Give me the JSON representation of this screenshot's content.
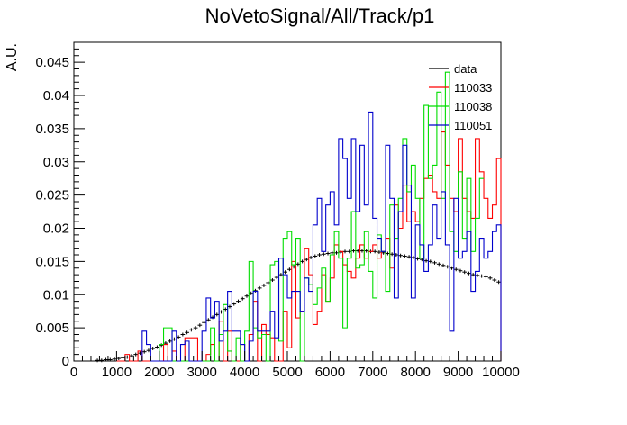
{
  "chart_data": {
    "type": "histogram",
    "title": "NoVetoSignal/All/Track/p1",
    "xlabel": "",
    "ylabel": "A.U.",
    "xlim": [
      0,
      10000
    ],
    "ylim": [
      0,
      0.048
    ],
    "grid": false,
    "legend_position": "top-right",
    "x_ticks": [
      "0",
      "1000",
      "2000",
      "3000",
      "4000",
      "5000",
      "6000",
      "7000",
      "8000",
      "9000",
      "10000"
    ],
    "y_ticks": [
      "0",
      "0.005",
      "0.01",
      "0.015",
      "0.02",
      "0.025",
      "0.03",
      "0.035",
      "0.04",
      "0.045"
    ],
    "bin_width": 100,
    "series": [
      {
        "name": "data",
        "color": "#000000",
        "style": "points",
        "bin_starts": [
          500,
          600,
          700,
          800,
          900,
          1000,
          1100,
          1200,
          1300,
          1400,
          1500,
          1600,
          1700,
          1800,
          1900,
          2000,
          2100,
          2200,
          2300,
          2400,
          2500,
          2600,
          2700,
          2800,
          2900,
          3000,
          3100,
          3200,
          3300,
          3400,
          3500,
          3600,
          3700,
          3800,
          3900,
          4000,
          4100,
          4200,
          4300,
          4400,
          4500,
          4600,
          4700,
          4800,
          4900,
          5000,
          5100,
          5200,
          5300,
          5400,
          5500,
          5600,
          5700,
          5800,
          5900,
          6000,
          6100,
          6200,
          6300,
          6400,
          6500,
          6600,
          6700,
          6800,
          6900,
          7000,
          7100,
          7200,
          7300,
          7400,
          7500,
          7600,
          7700,
          7800,
          7900,
          8000,
          8100,
          8200,
          8300,
          8400,
          8500,
          8600,
          8700,
          8800,
          8900,
          9000,
          9100,
          9200,
          9300,
          9400,
          9500,
          9600,
          9700,
          9800,
          9900
        ],
        "values": [
          0.0001,
          0.0001,
          0.0002,
          0.0002,
          0.0003,
          0.0004,
          0.0005,
          0.0006,
          0.0008,
          0.001,
          0.0012,
          0.0014,
          0.0016,
          0.0019,
          0.0021,
          0.0024,
          0.0027,
          0.003,
          0.0033,
          0.0036,
          0.004,
          0.0043,
          0.0047,
          0.005,
          0.0054,
          0.0058,
          0.0062,
          0.0066,
          0.007,
          0.0074,
          0.0078,
          0.0082,
          0.0086,
          0.009,
          0.0094,
          0.0098,
          0.0102,
          0.0106,
          0.011,
          0.0114,
          0.0118,
          0.0122,
          0.0126,
          0.013,
          0.0134,
          0.0138,
          0.0142,
          0.0146,
          0.015,
          0.0153,
          0.0156,
          0.0158,
          0.016,
          0.0161,
          0.0162,
          0.0163,
          0.0163,
          0.0164,
          0.0165,
          0.0165,
          0.0166,
          0.0166,
          0.0166,
          0.0166,
          0.0165,
          0.0165,
          0.0164,
          0.0163,
          0.0162,
          0.0161,
          0.016,
          0.0159,
          0.0158,
          0.0157,
          0.0156,
          0.0154,
          0.0153,
          0.0151,
          0.015,
          0.0148,
          0.0146,
          0.0144,
          0.0142,
          0.014,
          0.0138,
          0.0136,
          0.0134,
          0.0132,
          0.013,
          0.0129,
          0.0128,
          0.0127,
          0.0125,
          0.0122,
          0.0119
        ]
      },
      {
        "name": "110033",
        "color": "#ff0000",
        "style": "step",
        "bin_starts": [
          1000,
          1100,
          1200,
          1300,
          1400,
          1500,
          1600,
          1700,
          1800,
          1900,
          2000,
          2100,
          2200,
          2300,
          2400,
          2500,
          2600,
          2700,
          2800,
          2900,
          3000,
          3100,
          3200,
          3300,
          3400,
          3500,
          3600,
          3700,
          3800,
          3900,
          4000,
          4100,
          4200,
          4300,
          4400,
          4500,
          4600,
          4700,
          4800,
          4900,
          5000,
          5100,
          5200,
          5300,
          5400,
          5500,
          5600,
          5700,
          5800,
          5900,
          6000,
          6100,
          6200,
          6300,
          6400,
          6500,
          6600,
          6700,
          6800,
          6900,
          7000,
          7100,
          7200,
          7300,
          7400,
          7500,
          7600,
          7700,
          7800,
          7900,
          8000,
          8100,
          8200,
          8300,
          8400,
          8500,
          8600,
          8700,
          8800,
          8900,
          9000,
          9100,
          9200,
          9300,
          9400,
          9500,
          9600,
          9700,
          9800,
          9900
        ],
        "values": [
          0,
          0,
          0.001,
          0,
          0,
          0.0015,
          0,
          0,
          0,
          0,
          0,
          0.0025,
          0,
          0.0015,
          0,
          0,
          0.0035,
          0.0035,
          0.0035,
          0,
          0,
          0.001,
          0.0025,
          0,
          0.006,
          0,
          0.0045,
          0,
          0,
          0.0025,
          0,
          0.004,
          0.009,
          0,
          0.0055,
          0.004,
          0.0035,
          0,
          0,
          0.0075,
          0.002,
          0.015,
          0.0065,
          0.0075,
          0.017,
          0.013,
          0.0055,
          0.0075,
          0.013,
          0.009,
          0.0125,
          0.0175,
          0.0165,
          0.0145,
          0.0135,
          0.0125,
          0.0155,
          0.0175,
          0.0155,
          0.0165,
          0.0175,
          0.0155,
          0.0165,
          0.0185,
          0.014,
          0.0235,
          0.02,
          0.0265,
          0.021,
          0.0225,
          0.021,
          0.0245,
          0.0275,
          0.028,
          0.0255,
          0.0245,
          0.0345,
          0.0295,
          0.0245,
          0.0225,
          0.0335,
          0.0245,
          0.0225,
          0.0215,
          0.0335,
          0.0285,
          0.0245,
          0.0215,
          0.0235,
          0.0305
        ]
      },
      {
        "name": "110038",
        "color": "#00dd00",
        "style": "step",
        "bin_starts": [
          2000,
          2100,
          2200,
          2300,
          2400,
          2500,
          2600,
          2700,
          2800,
          2900,
          3000,
          3100,
          3200,
          3300,
          3400,
          3500,
          3600,
          3700,
          3800,
          3900,
          4000,
          4100,
          4200,
          4300,
          4400,
          4500,
          4600,
          4700,
          4800,
          4900,
          5000,
          5100,
          5200,
          5300,
          5400,
          5500,
          5600,
          5700,
          5800,
          5900,
          6000,
          6100,
          6200,
          6300,
          6400,
          6500,
          6600,
          6700,
          6800,
          6900,
          7000,
          7100,
          7200,
          7300,
          7400,
          7500,
          7600,
          7700,
          7800,
          7900,
          8000,
          8100,
          8200,
          8300,
          8400,
          8500,
          8600,
          8700,
          8800,
          8900,
          9000,
          9100,
          9200,
          9300,
          9400,
          9500,
          9600,
          9700,
          9800,
          9900
        ],
        "values": [
          0.0025,
          0.005,
          0.005,
          0,
          0,
          0,
          0,
          0,
          0,
          0,
          0,
          0,
          0.005,
          0,
          0.004,
          0.0085,
          0.0015,
          0,
          0.0035,
          0,
          0.0045,
          0.015,
          0.005,
          0.0035,
          0.004,
          0,
          0.0145,
          0.015,
          0.003,
          0.0185,
          0.0195,
          0.0145,
          0.0185,
          0,
          0.0125,
          0.0115,
          0.0085,
          0.011,
          0.014,
          0.009,
          0.016,
          0.0195,
          0.0155,
          0.005,
          0.0155,
          0.0225,
          0.014,
          0.0145,
          0.0195,
          0.0135,
          0.0095,
          0.019,
          0.0165,
          0.0105,
          0.0235,
          0.0185,
          0.0245,
          0.0335,
          0.0255,
          0.0295,
          0.0245,
          0.0155,
          0.0385,
          0.0275,
          0.0295,
          0.0405,
          0.0245,
          0.0435,
          0.0195,
          0.0165,
          0.0285,
          0.0185,
          0.0275,
          0.0165,
          0.0215,
          0.0275
        ]
      },
      {
        "name": "110051",
        "color": "#0000cc",
        "style": "step",
        "bin_starts": [
          1600,
          1700,
          1800,
          1900,
          2000,
          2100,
          2200,
          2300,
          2400,
          2500,
          2600,
          2700,
          2800,
          2900,
          3000,
          3100,
          3200,
          3300,
          3400,
          3500,
          3600,
          3700,
          3800,
          3900,
          4000,
          4100,
          4200,
          4300,
          4400,
          4500,
          4600,
          4700,
          4800,
          4900,
          5000,
          5100,
          5200,
          5300,
          5400,
          5500,
          5600,
          5700,
          5800,
          5900,
          6000,
          6100,
          6200,
          6300,
          6400,
          6500,
          6600,
          6700,
          6800,
          6900,
          7000,
          7100,
          7200,
          7300,
          7400,
          7500,
          7600,
          7700,
          7800,
          7900,
          8000,
          8100,
          8200,
          8300,
          8400,
          8500,
          8600,
          8700,
          8800,
          8900,
          9000,
          9100,
          9200,
          9300,
          9400,
          9500,
          9600,
          9700,
          9800,
          9900
        ],
        "values": [
          0.0045,
          0.0025,
          0,
          0,
          0,
          0,
          0,
          0.0045,
          0,
          0.0025,
          0.003,
          0,
          0,
          0,
          0.0045,
          0.0095,
          0.0065,
          0.009,
          0.003,
          0.0045,
          0.0105,
          0.0045,
          0.0045,
          0.0025,
          0,
          0.003,
          0.0105,
          0.0045,
          0.0045,
          0.0045,
          0.0075,
          0.0035,
          0.0155,
          0.013,
          0.0095,
          0.0105,
          0.0105,
          0.0075,
          0.0125,
          0.0105,
          0.0205,
          0.0245,
          0.0165,
          0.0235,
          0.0255,
          0.0205,
          0.0335,
          0.0305,
          0.0245,
          0.0335,
          0.0225,
          0.0325,
          0.0235,
          0.0375,
          0.0215,
          0.0185,
          0.0165,
          0.0325,
          0.0245,
          0.0095,
          0.0225,
          0.0325,
          0.0265,
          0.0095,
          0.0205,
          0.0175,
          0.0135,
          0.0175,
          0.0235,
          0.0185,
          0.0255,
          0.0175,
          0.0045,
          0.0245,
          0.0155,
          0.0165,
          0.0195,
          0.0105,
          0.0135,
          0.0185,
          0.0155,
          0.0165,
          0.0195,
          0.0205
        ]
      }
    ]
  }
}
